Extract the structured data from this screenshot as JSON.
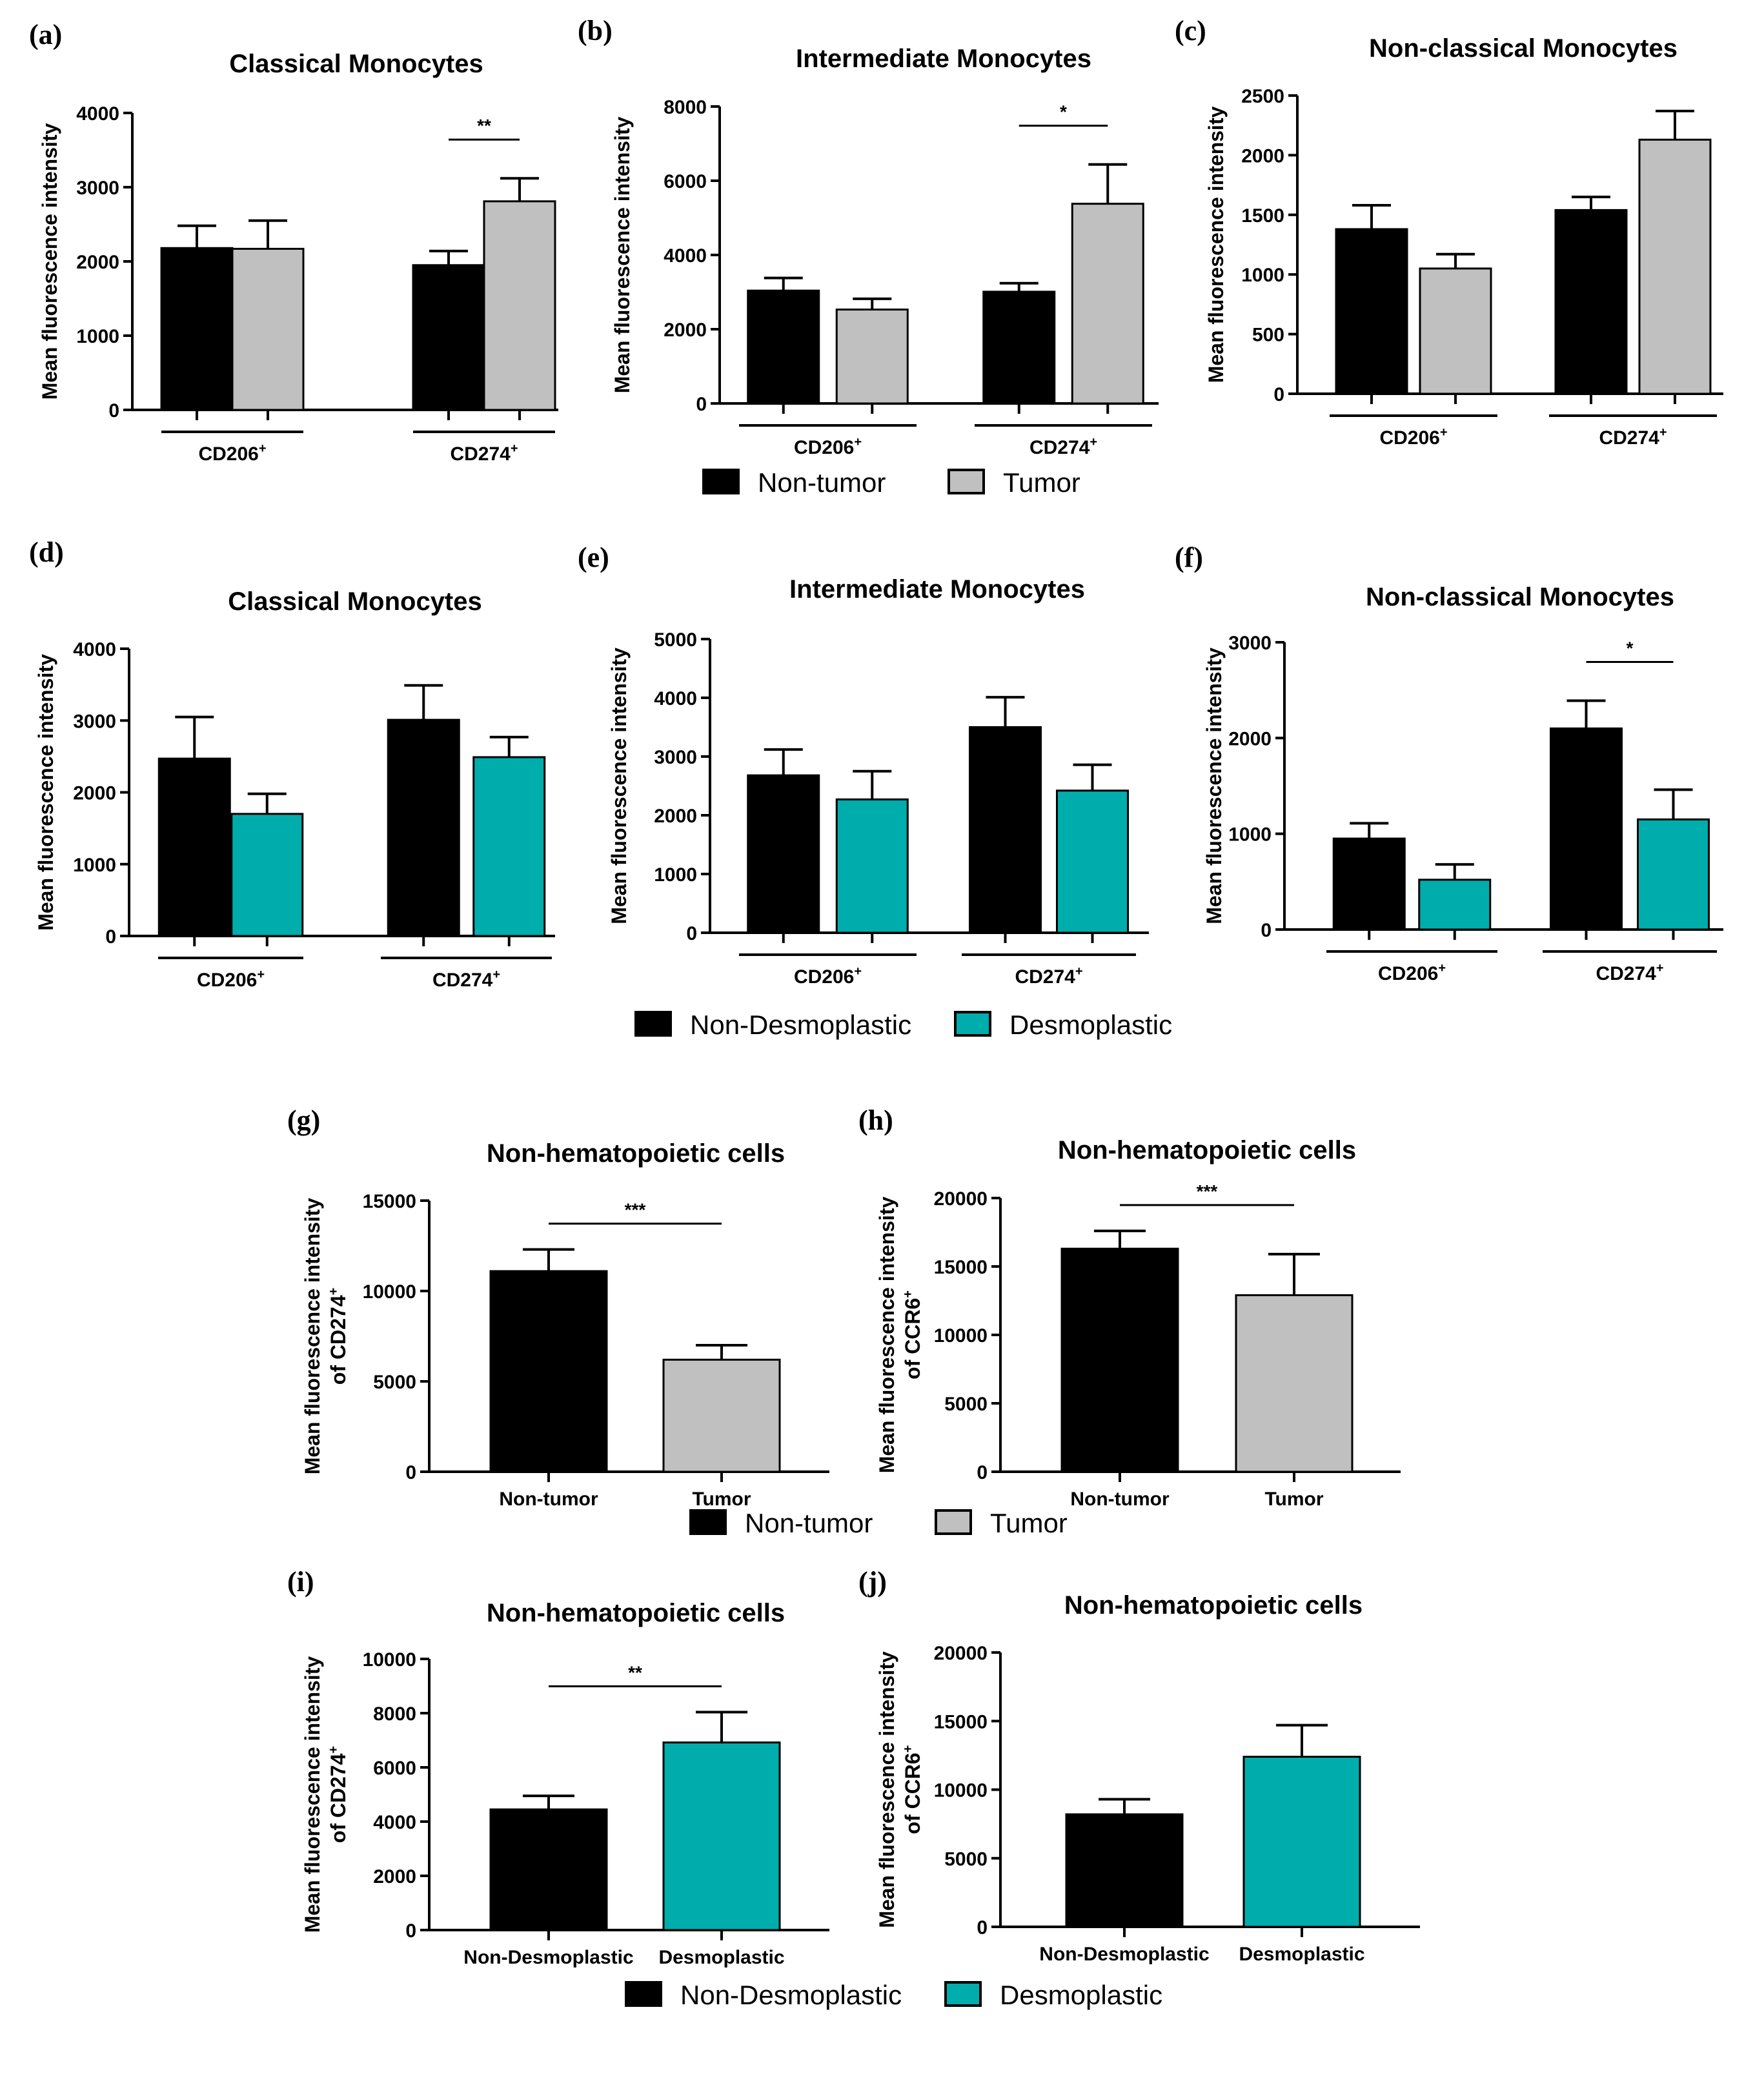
{
  "figure": {
    "colors": {
      "non_tumor": "#000000",
      "tumor": "#c0c0c0",
      "non_desmoplastic": "#000000",
      "desmoplastic": "#00adad",
      "axis": "#000000"
    },
    "legends": [
      {
        "items": [
          {
            "label": "Non-tumor",
            "color": "#000000"
          },
          {
            "label": "Tumor",
            "color": "#c0c0c0"
          }
        ]
      },
      {
        "items": [
          {
            "label": "Non-Desmoplastic",
            "color": "#000000"
          },
          {
            "label": "Desmoplastic",
            "color": "#00adad"
          }
        ]
      },
      {
        "items": [
          {
            "label": "Non-tumor",
            "color": "#000000"
          },
          {
            "label": "Tumor",
            "color": "#c0c0c0"
          }
        ]
      },
      {
        "items": [
          {
            "label": "Non-Desmoplastic",
            "color": "#000000"
          },
          {
            "label": "Desmoplastic",
            "color": "#00adad"
          }
        ]
      }
    ]
  },
  "chart_data": [
    {
      "panel": "(a)",
      "type": "bar",
      "title": "Classical Monocytes",
      "ylabel": [
        "Mean fluorescence intensity"
      ],
      "ylim": [
        0,
        4000
      ],
      "yticks": [
        "0",
        "1000",
        "2000",
        "3000",
        "4000"
      ],
      "groups": [
        {
          "main": "CD206",
          "sup": "+"
        },
        {
          "main": "CD274",
          "sup": "+"
        }
      ],
      "series": [
        {
          "name": "Non-tumor",
          "color": "#000000",
          "values": [
            2180,
            1950
          ],
          "errors": [
            300,
            190
          ]
        },
        {
          "name": "Tumor",
          "color": "#c0c0c0",
          "values": [
            2170,
            2810
          ],
          "errors": [
            380,
            310
          ]
        }
      ],
      "significance": [
        {
          "group": 1,
          "label": "**"
        }
      ]
    },
    {
      "panel": "(b)",
      "type": "bar",
      "title": "Intermediate Monocytes",
      "ylabel": [
        "Mean fluorescence intensity"
      ],
      "ylim": [
        0,
        8000
      ],
      "yticks": [
        "0",
        "2000",
        "4000",
        "6000",
        "8000"
      ],
      "groups": [
        {
          "main": "CD206",
          "sup": "+"
        },
        {
          "main": "CD274",
          "sup": "+"
        }
      ],
      "series": [
        {
          "name": "Non-tumor",
          "color": "#000000",
          "values": [
            3040,
            3010
          ],
          "errors": [
            340,
            230
          ]
        },
        {
          "name": "Tumor",
          "color": "#c0c0c0",
          "values": [
            2530,
            5380
          ],
          "errors": [
            290,
            1060
          ]
        }
      ],
      "significance": [
        {
          "group": 1,
          "label": "*"
        }
      ]
    },
    {
      "panel": "(c)",
      "type": "bar",
      "title": "Non-classical Monocytes",
      "ylabel": [
        "Mean fluorescence intensity"
      ],
      "ylim": [
        0,
        2500
      ],
      "yticks": [
        "0",
        "500",
        "1000",
        "1500",
        "2000",
        "2500"
      ],
      "groups": [
        {
          "main": "CD206",
          "sup": "+"
        },
        {
          "main": "CD274",
          "sup": "+"
        }
      ],
      "series": [
        {
          "name": "Non-tumor",
          "color": "#000000",
          "values": [
            1380,
            1540
          ],
          "errors": [
            200,
            110
          ]
        },
        {
          "name": "Tumor",
          "color": "#c0c0c0",
          "values": [
            1050,
            2130
          ],
          "errors": [
            120,
            240
          ]
        }
      ],
      "significance": []
    },
    {
      "panel": "(d)",
      "type": "bar",
      "title": "Classical Monocytes",
      "ylabel": [
        "Mean fluorescence intensity"
      ],
      "ylim": [
        0,
        4000
      ],
      "yticks": [
        "0",
        "1000",
        "2000",
        "3000",
        "4000"
      ],
      "groups": [
        {
          "main": "CD206",
          "sup": "+"
        },
        {
          "main": "CD274",
          "sup": "+"
        }
      ],
      "series": [
        {
          "name": "Non-Desmoplastic",
          "color": "#000000",
          "values": [
            2470,
            3010
          ],
          "errors": [
            580,
            480
          ]
        },
        {
          "name": "Desmoplastic",
          "color": "#00adad",
          "values": [
            1700,
            2490
          ],
          "errors": [
            280,
            280
          ]
        }
      ],
      "significance": []
    },
    {
      "panel": "(e)",
      "type": "bar",
      "title": "Intermediate Monocytes",
      "ylabel": [
        "Mean fluorescence intensity"
      ],
      "ylim": [
        0,
        5000
      ],
      "yticks": [
        "0",
        "1000",
        "2000",
        "3000",
        "4000",
        "5000"
      ],
      "groups": [
        {
          "main": "CD206",
          "sup": "+"
        },
        {
          "main": "CD274",
          "sup": "+"
        }
      ],
      "series": [
        {
          "name": "Non-Desmoplastic",
          "color": "#000000",
          "values": [
            2680,
            3500
          ],
          "errors": [
            440,
            510
          ]
        },
        {
          "name": "Desmoplastic",
          "color": "#00adad",
          "values": [
            2270,
            2420
          ],
          "errors": [
            480,
            440
          ]
        }
      ],
      "significance": []
    },
    {
      "panel": "(f)",
      "type": "bar",
      "title": "Non-classical Monocytes",
      "ylabel": [
        "Mean fluorescence intensity"
      ],
      "ylim": [
        0,
        3000
      ],
      "yticks": [
        "0",
        "1000",
        "2000",
        "3000"
      ],
      "groups": [
        {
          "main": "CD206",
          "sup": "+"
        },
        {
          "main": "CD274",
          "sup": "+"
        }
      ],
      "series": [
        {
          "name": "Non-Desmoplastic",
          "color": "#000000",
          "values": [
            950,
            2100
          ],
          "errors": [
            160,
            290
          ]
        },
        {
          "name": "Desmoplastic",
          "color": "#00adad",
          "values": [
            520,
            1150
          ],
          "errors": [
            160,
            310
          ]
        }
      ],
      "significance": [
        {
          "group": 1,
          "label": "*"
        }
      ]
    },
    {
      "panel": "(g)",
      "type": "bar",
      "title": "Non-hematopoietic cells",
      "ylabel": [
        "Mean fluorescence intensity",
        "of CD274",
        "+"
      ],
      "ylim": [
        0,
        15000
      ],
      "yticks": [
        "0",
        "5000",
        "10000",
        "15000"
      ],
      "categories": [
        "Non-tumor",
        "Tumor"
      ],
      "values": [
        11100,
        6200
      ],
      "errors": [
        1200,
        800
      ],
      "colors": [
        "#000000",
        "#c0c0c0"
      ],
      "significance": [
        {
          "label": "***"
        }
      ]
    },
    {
      "panel": "(h)",
      "type": "bar",
      "title": "Non-hematopoietic cells",
      "ylabel": [
        "Mean fluorescence intensity",
        "of CCR6",
        "+"
      ],
      "ylim": [
        0,
        20000
      ],
      "yticks": [
        "0",
        "5000",
        "10000",
        "15000",
        "20000"
      ],
      "categories": [
        "Non-tumor",
        "Tumor"
      ],
      "values": [
        16300,
        12900
      ],
      "errors": [
        1300,
        3000
      ],
      "colors": [
        "#000000",
        "#c0c0c0"
      ],
      "significance": [
        {
          "label": "***"
        }
      ]
    },
    {
      "panel": "(i)",
      "type": "bar",
      "title": "Non-hematopoietic cells",
      "ylabel": [
        "Mean fluorescence intensity",
        "of CD274",
        "+"
      ],
      "ylim": [
        0,
        10000
      ],
      "yticks": [
        "0",
        "2000",
        "4000",
        "6000",
        "8000",
        "10000"
      ],
      "categories": [
        "Non-Desmoplastic",
        "Desmoplastic"
      ],
      "values": [
        4450,
        6920
      ],
      "errors": [
        500,
        1120
      ],
      "colors": [
        "#000000",
        "#00adad"
      ],
      "significance": [
        {
          "label": "**"
        }
      ]
    },
    {
      "panel": "(j)",
      "type": "bar",
      "title": "Non-hematopoietic cells",
      "ylabel": [
        "Mean fluorescence intensity",
        "of CCR6",
        "+"
      ],
      "ylim": [
        0,
        20000
      ],
      "yticks": [
        "0",
        "5000",
        "10000",
        "15000",
        "20000"
      ],
      "categories": [
        "Non-Desmoplastic",
        "Desmoplastic"
      ],
      "values": [
        8200,
        12400
      ],
      "errors": [
        1100,
        2300
      ],
      "colors": [
        "#000000",
        "#00adad"
      ],
      "significance": []
    }
  ]
}
